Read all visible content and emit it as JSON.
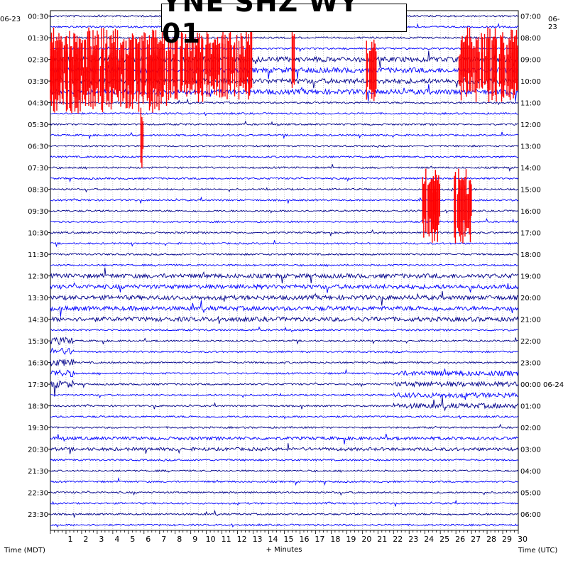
{
  "chart_data": {
    "type": "helicorder",
    "title": "YNE SHZ WY 01",
    "start_date_left": "06-23",
    "start_date_right": "06-23",
    "next_date_right": "06-24",
    "xlabel": "+ Minutes",
    "left_axis_label": "Time (MDT)",
    "right_axis_label": "Time (UTC)",
    "x_ticks": [
      1,
      2,
      3,
      4,
      5,
      6,
      7,
      8,
      9,
      10,
      11,
      12,
      13,
      14,
      15,
      16,
      17,
      18,
      19,
      20,
      21,
      22,
      23,
      24,
      25,
      26,
      27,
      28,
      29,
      30
    ],
    "xlim": [
      0,
      30
    ],
    "rows_per_label": 2,
    "left_time_labels": [
      "00:30",
      "01:30",
      "02:30",
      "03:30",
      "04:30",
      "05:30",
      "06:30",
      "07:30",
      "08:30",
      "09:30",
      "10:30",
      "11:30",
      "12:30",
      "13:30",
      "14:30",
      "15:30",
      "16:30",
      "17:30",
      "18:30",
      "19:30",
      "20:30",
      "21:30",
      "22:30",
      "23:30"
    ],
    "right_time_labels": [
      "07:00",
      "08:00",
      "09:00",
      "10:00",
      "11:00",
      "12:00",
      "13:00",
      "14:00",
      "15:00",
      "16:00",
      "17:00",
      "18:00",
      "19:00",
      "20:00",
      "21:00",
      "22:00",
      "23:00",
      "00:00 06-24",
      "01:00",
      "02:00",
      "03:00",
      "04:00",
      "05:00",
      "06:00"
    ],
    "trace_colors": [
      "#00008b",
      "#0000ff"
    ],
    "clip_color": "#ff0000",
    "clipped_segments": [
      {
        "row": 4,
        "start_min": 0.0,
        "end_min": 13.0
      },
      {
        "row": 5,
        "start_min": 0.0,
        "end_min": 13.0
      },
      {
        "row": 6,
        "start_min": 0.0,
        "end_min": 7.5
      },
      {
        "row": 4,
        "start_min": 15.5,
        "end_min": 15.7
      },
      {
        "row": 5,
        "start_min": 20.2,
        "end_min": 20.9
      },
      {
        "row": 4,
        "start_min": 26.2,
        "end_min": 30.0
      },
      {
        "row": 5,
        "start_min": 26.2,
        "end_min": 30.0
      },
      {
        "row": 11,
        "start_min": 5.8,
        "end_min": 6.0
      },
      {
        "row": 12,
        "start_min": 5.8,
        "end_min": 6.0
      },
      {
        "row": 17,
        "start_min": 23.8,
        "end_min": 25.0
      },
      {
        "row": 18,
        "start_min": 23.8,
        "end_min": 25.0
      },
      {
        "row": 17,
        "start_min": 25.9,
        "end_min": 27.0
      },
      {
        "row": 18,
        "start_min": 25.9,
        "end_min": 27.0
      }
    ],
    "grid": true,
    "grid_style": "dotted"
  }
}
